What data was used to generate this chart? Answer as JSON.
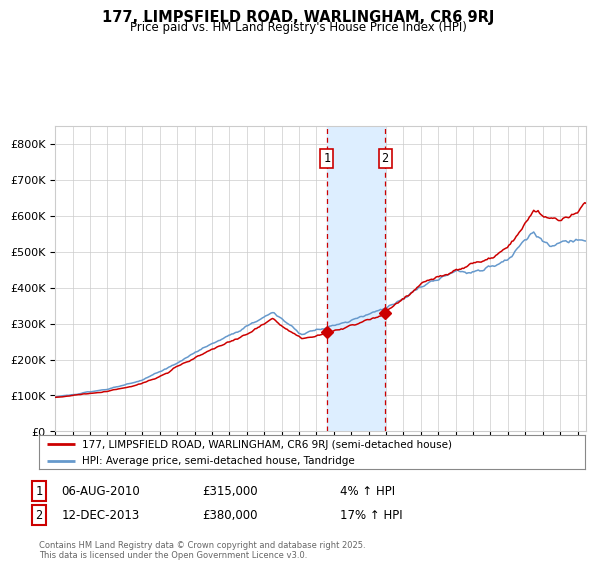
{
  "title": "177, LIMPSFIELD ROAD, WARLINGHAM, CR6 9RJ",
  "subtitle": "Price paid vs. HM Land Registry's House Price Index (HPI)",
  "legend_line1": "177, LIMPSFIELD ROAD, WARLINGHAM, CR6 9RJ (semi-detached house)",
  "legend_line2": "HPI: Average price, semi-detached house, Tandridge",
  "sale1_date": "06-AUG-2010",
  "sale1_price": 315000,
  "sale1_hpi_diff": "4% ↑ HPI",
  "sale2_date": "12-DEC-2013",
  "sale2_price": 380000,
  "sale2_hpi_diff": "17% ↑ HPI",
  "footer": "Contains HM Land Registry data © Crown copyright and database right 2025.\nThis data is licensed under the Open Government Licence v3.0.",
  "red_color": "#cc0000",
  "blue_color": "#6699cc",
  "shade_color": "#ddeeff",
  "background_color": "#ffffff",
  "grid_color": "#cccccc",
  "ylim": [
    0,
    850000
  ],
  "yticks": [
    0,
    100000,
    200000,
    300000,
    400000,
    500000,
    600000,
    700000,
    800000
  ],
  "xlim_start": 1995.0,
  "xlim_end": 2025.5,
  "sale1_x": 2010.6,
  "sale2_x": 2013.95
}
